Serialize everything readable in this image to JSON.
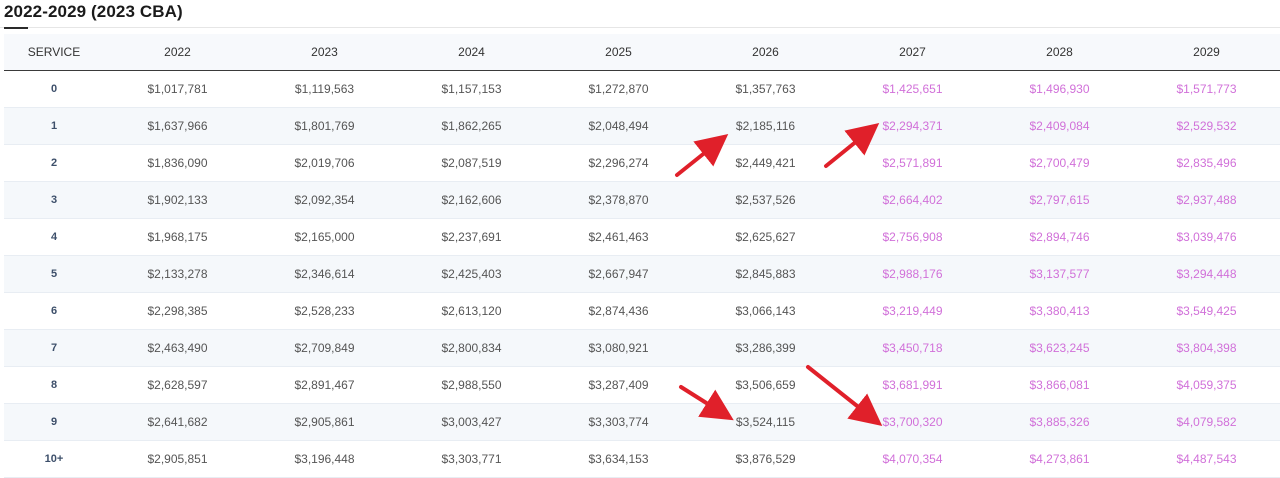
{
  "page": {
    "title": "2022-2029 (2023 CBA)"
  },
  "table": {
    "headers": [
      "SERVICE",
      "2022",
      "2023",
      "2024",
      "2025",
      "2026",
      "2027",
      "2028",
      "2029"
    ],
    "projected_color": "#d170d9",
    "rows": [
      [
        "0",
        "$1,017,781",
        "$1,119,563",
        "$1,157,153",
        "$1,272,870",
        "$1,357,763",
        "$1,425,651",
        "$1,496,930",
        "$1,571,773"
      ],
      [
        "1",
        "$1,637,966",
        "$1,801,769",
        "$1,862,265",
        "$2,048,494",
        "$2,185,116",
        "$2,294,371",
        "$2,409,084",
        "$2,529,532"
      ],
      [
        "2",
        "$1,836,090",
        "$2,019,706",
        "$2,087,519",
        "$2,296,274",
        "$2,449,421",
        "$2,571,891",
        "$2,700,479",
        "$2,835,496"
      ],
      [
        "3",
        "$1,902,133",
        "$2,092,354",
        "$2,162,606",
        "$2,378,870",
        "$2,537,526",
        "$2,664,402",
        "$2,797,615",
        "$2,937,488"
      ],
      [
        "4",
        "$1,968,175",
        "$2,165,000",
        "$2,237,691",
        "$2,461,463",
        "$2,625,627",
        "$2,756,908",
        "$2,894,746",
        "$3,039,476"
      ],
      [
        "5",
        "$2,133,278",
        "$2,346,614",
        "$2,425,403",
        "$2,667,947",
        "$2,845,883",
        "$2,988,176",
        "$3,137,577",
        "$3,294,448"
      ],
      [
        "6",
        "$2,298,385",
        "$2,528,233",
        "$2,613,120",
        "$2,874,436",
        "$3,066,143",
        "$3,219,449",
        "$3,380,413",
        "$3,549,425"
      ],
      [
        "7",
        "$2,463,490",
        "$2,709,849",
        "$2,800,834",
        "$3,080,921",
        "$3,286,399",
        "$3,450,718",
        "$3,623,245",
        "$3,804,398"
      ],
      [
        "8",
        "$2,628,597",
        "$2,891,467",
        "$2,988,550",
        "$3,287,409",
        "$3,506,659",
        "$3,681,991",
        "$3,866,081",
        "$4,059,375"
      ],
      [
        "9",
        "$2,641,682",
        "$2,905,861",
        "$3,003,427",
        "$3,303,774",
        "$3,524,115",
        "$3,700,320",
        "$3,885,326",
        "$4,079,582"
      ],
      [
        "10+",
        "$2,905,851",
        "$3,196,448",
        "$3,303,771",
        "$3,634,153",
        "$3,876,529",
        "$4,070,354",
        "$4,273,861",
        "$4,487,543"
      ]
    ]
  },
  "annotations": {
    "arrow_color": "#e0202a",
    "arrow_count": 4
  }
}
